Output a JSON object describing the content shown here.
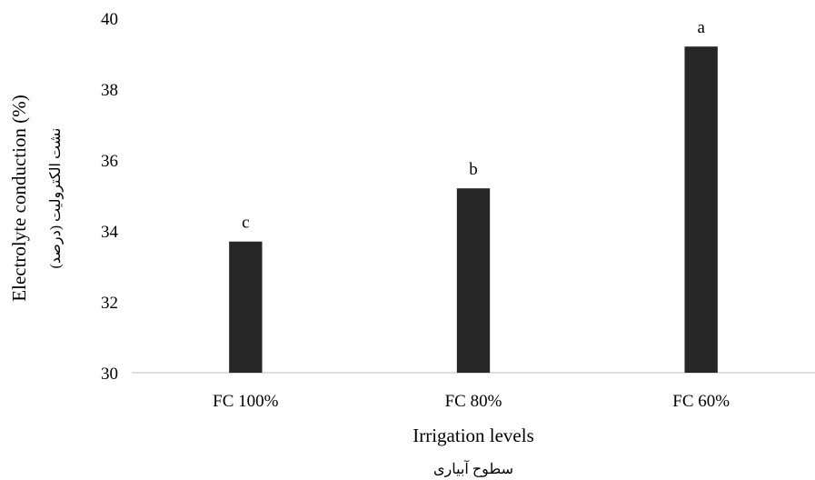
{
  "chart_data": {
    "type": "bar",
    "categories": [
      "FC 100%",
      "FC 80%",
      "FC 60%"
    ],
    "values": [
      33.7,
      35.2,
      39.2
    ],
    "bar_labels": [
      "c",
      "b",
      "a"
    ],
    "xlabel": "Irrigation levels",
    "xlabel_sub": "سطوح آبیاری",
    "ylabel": "Electrolyte conduction (%)",
    "ylabel_sub": "نشت الکترولیت (درصد)",
    "ylim": [
      30,
      40
    ],
    "yticks": [
      30,
      32,
      34,
      36,
      38,
      40
    ],
    "grid": false,
    "bar_color": "#262626"
  }
}
